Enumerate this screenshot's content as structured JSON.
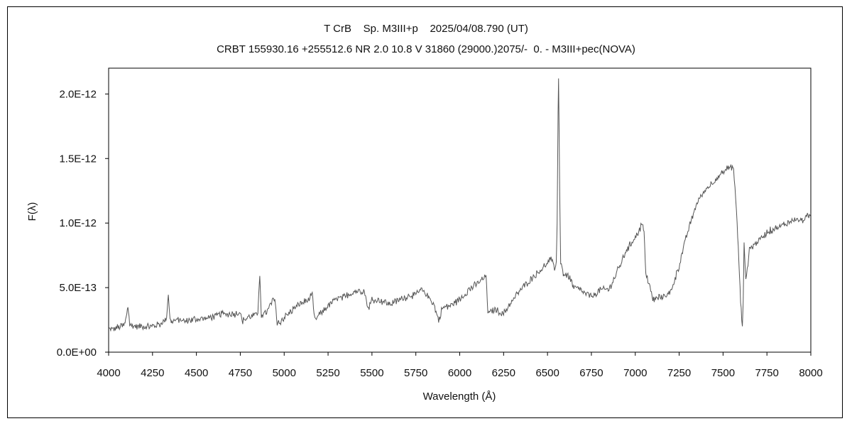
{
  "chart_data": {
    "type": "line",
    "title": "T CrB    Sp. M3III+p    2025/04/08.790 (UT)",
    "subtitle": "CRBT 155930.16 +255512.6 NR 2.0 10.8 V 31860 (29000.)2075/-  0. - M3III+pec(NOVA)",
    "xlabel": "Wavelength (Å)",
    "ylabel": "F(λ)",
    "xlim": [
      4000,
      8000
    ],
    "ylim": [
      0,
      2.2e-12
    ],
    "x_ticks": [
      4000,
      4250,
      4500,
      4750,
      5000,
      5250,
      5500,
      5750,
      6000,
      6250,
      6500,
      6750,
      7000,
      7250,
      7500,
      7750,
      8000
    ],
    "x_tick_labels": [
      "4000",
      "4250",
      "4500",
      "4750",
      "5000",
      "5250",
      "5500",
      "5750",
      "6000",
      "6250",
      "6500",
      "6750",
      "7000",
      "7250",
      "7500",
      "7750",
      "8000"
    ],
    "y_ticks": [
      0,
      5e-13,
      1e-12,
      1.5e-12,
      2e-12
    ],
    "y_tick_labels": [
      "0.0E+00",
      "5.0E-13",
      "1.0E-12",
      "1.5E-12",
      "2.0E-12"
    ],
    "grid": false,
    "legend": "none",
    "line_color": "#555555",
    "series": [
      {
        "x": [
          4000,
          4050,
          4090,
          4100,
          4110,
          4120,
          4150,
          4200,
          4250,
          4300,
          4330,
          4340,
          4350,
          4360,
          4400,
          4450,
          4500,
          4550,
          4600,
          4650,
          4700,
          4750,
          4760,
          4800,
          4850,
          4855,
          4861,
          4870,
          4900,
          4940,
          4950,
          4960,
          5000,
          5050,
          5100,
          5150,
          5160,
          5170,
          5175,
          5200,
          5250,
          5300,
          5350,
          5400,
          5450,
          5460,
          5480,
          5500,
          5550,
          5600,
          5650,
          5700,
          5750,
          5780,
          5800,
          5850,
          5880,
          5900,
          5950,
          6000,
          6050,
          6100,
          6150,
          6160,
          6170,
          6200,
          6250,
          6300,
          6350,
          6400,
          6450,
          6500,
          6520,
          6540,
          6550,
          6555,
          6560,
          6563,
          6570,
          6575,
          6590,
          6620,
          6650,
          6700,
          6750,
          6800,
          6850,
          6900,
          6950,
          7000,
          7040,
          7050,
          7060,
          7080,
          7100,
          7150,
          7200,
          7250,
          7300,
          7350,
          7400,
          7450,
          7500,
          7530,
          7560,
          7580,
          7590,
          7600,
          7610,
          7615,
          7620,
          7630,
          7650,
          7700,
          7750,
          7800,
          7850,
          7900,
          7950,
          8000
        ],
        "y": [
          1.7e-13,
          1.9e-13,
          2.1e-13,
          2.7e-13,
          3.6e-13,
          2.1e-13,
          2e-13,
          2e-13,
          2e-13,
          2.2e-13,
          2.6e-13,
          4.6e-13,
          2.5e-13,
          2.4e-13,
          2.5e-13,
          2.4e-13,
          2.6e-13,
          2.6e-13,
          2.8e-13,
          3e-13,
          2.9e-13,
          3.1e-13,
          2.4e-13,
          2.7e-13,
          3e-13,
          4.5e-13,
          5.9e-13,
          2.9e-13,
          3.1e-13,
          4.1e-13,
          3.9e-13,
          2.1e-13,
          2.7e-13,
          3.3e-13,
          3.8e-13,
          4.2e-13,
          4.5e-13,
          3e-13,
          2.5e-13,
          2.9e-13,
          3.6e-13,
          4.1e-13,
          4.3e-13,
          4.7e-13,
          4.8e-13,
          4.5e-13,
          3.3e-13,
          4.1e-13,
          4e-13,
          3.7e-13,
          4e-13,
          4.3e-13,
          4.5e-13,
          4.8e-13,
          4.6e-13,
          3.8e-13,
          2.4e-13,
          3.4e-13,
          3.6e-13,
          4.1e-13,
          4.8e-13,
          5.3e-13,
          5.9e-13,
          3.2e-13,
          3e-13,
          3.3e-13,
          3e-13,
          4e-13,
          4.9e-13,
          5.6e-13,
          6.2e-13,
          6.9e-13,
          7.2e-13,
          6.5e-13,
          7e-13,
          1e-12,
          1.85e-12,
          2.12e-12,
          1.2e-12,
          6.9e-13,
          6.1e-13,
          5.9e-13,
          5e-13,
          4.7e-13,
          4.3e-13,
          4.8e-13,
          4.9e-13,
          6.3e-13,
          7.9e-13,
          8.9e-13,
          9.9e-13,
          9.3e-13,
          6.2e-13,
          5.1e-13,
          4.1e-13,
          4.3e-13,
          4.6e-13,
          6.7e-13,
          9.4e-13,
          1.15e-12,
          1.26e-12,
          1.33e-12,
          1.39e-12,
          1.43e-12,
          1.43e-12,
          1e-12,
          7e-13,
          4e-13,
          2e-13,
          4e-13,
          8.5e-13,
          5.4e-13,
          8e-13,
          8.6e-13,
          9.3e-13,
          9.6e-13,
          9.9e-13,
          1.03e-12,
          1.02e-12,
          1.07e-12
        ]
      }
    ]
  }
}
